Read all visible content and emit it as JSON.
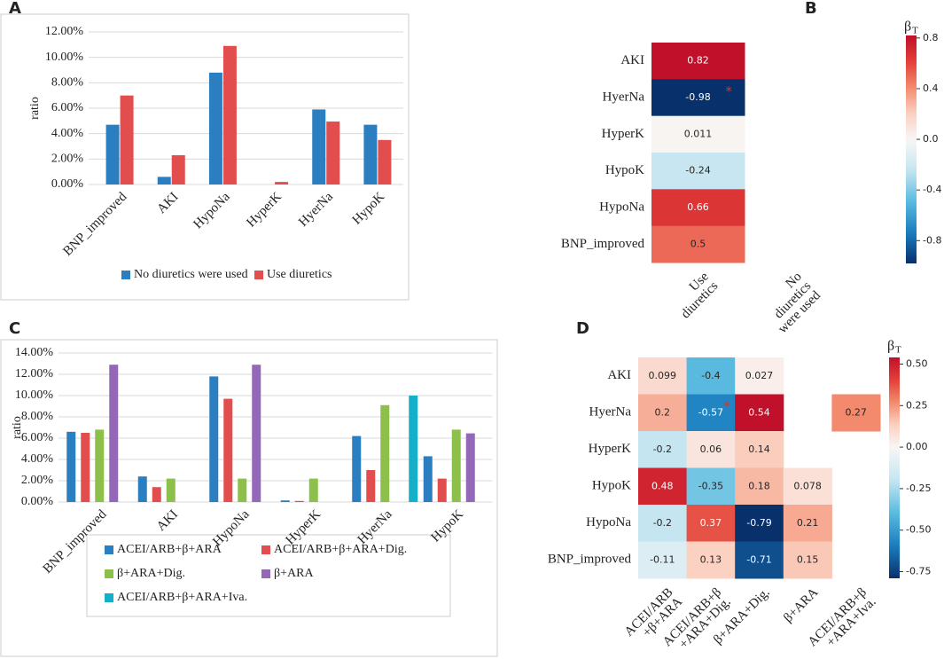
{
  "chart_data": [
    {
      "type": "bar",
      "panel": "A",
      "ylabel": "ratio",
      "categories": [
        "BNP_improved",
        "AKI",
        "HypoNa",
        "HyperK",
        "HyerNa",
        "HypoK"
      ],
      "series": [
        {
          "name": "No diuretics were used",
          "color": "#2b7fc1",
          "values": [
            4.7,
            0.6,
            8.8,
            0,
            5.9,
            4.7
          ]
        },
        {
          "name": "Use diuretics",
          "color": "#e24e4e",
          "values": [
            7.0,
            2.3,
            10.9,
            0.2,
            4.95,
            3.5
          ]
        }
      ],
      "ylim": [
        0,
        12
      ],
      "yticks": [
        {
          "value": 0,
          "label": "0.00%"
        },
        {
          "value": 2,
          "label": "2.00%"
        },
        {
          "value": 4,
          "label": "4.00%"
        },
        {
          "value": 6,
          "label": "6.00%"
        },
        {
          "value": 8,
          "label": "8.00%"
        },
        {
          "value": 10,
          "label": "10.00%"
        },
        {
          "value": 12,
          "label": "12.00%"
        }
      ],
      "grid": true,
      "legend": "bottom"
    },
    {
      "type": "heatmap",
      "panel": "B",
      "rows": [
        "AKI",
        "HyerNa",
        "HyperK",
        "HypoK",
        "HypoNa",
        "BNP_improved"
      ],
      "columns": [
        [
          "Use",
          "diuretics"
        ],
        [
          "No",
          "diuretics",
          "were used"
        ]
      ],
      "values": [
        [
          0.82,
          null
        ],
        [
          -0.98,
          null
        ],
        [
          0.011,
          null
        ],
        [
          -0.24,
          null
        ],
        [
          0.66,
          null
        ],
        [
          0.5,
          null
        ]
      ],
      "annotations": [
        {
          "text": "*",
          "row": 1,
          "col": 0,
          "color": "#d9342b"
        }
      ],
      "colorbar_label": {
        "main": "β",
        "sub": "T"
      },
      "zlim": [
        -0.98,
        0.82
      ],
      "center": 0,
      "cticks": [
        0.8,
        0.4,
        {
          "value": 0,
          "label": "0.0"
        },
        -0.4,
        -0.8
      ],
      "colormap": [
        "#08306b",
        "#1a7dbf",
        "#5bbbe0",
        "#c6e6f1",
        "#f8f6f5",
        "#fbd0c0",
        "#f38a6d",
        "#e33f3a",
        "#c0102a"
      ]
    },
    {
      "type": "bar",
      "panel": "C",
      "ylabel": "ratio",
      "categories": [
        "BNP_improved",
        "AKI",
        "HypoNa",
        "HyperK",
        "HyerNa",
        "HypoK"
      ],
      "series": [
        {
          "name": "ACEI/ARB+β+ARA",
          "color": "#2b7fc1",
          "values": [
            6.6,
            2.4,
            11.8,
            0.15,
            6.2,
            4.3
          ]
        },
        {
          "name": "ACEI/ARB+β+ARA+Dig.",
          "color": "#e24e4e",
          "values": [
            6.5,
            1.4,
            9.7,
            0.1,
            3.0,
            2.2
          ]
        },
        {
          "name": "β+ARA+Dig.",
          "color": "#8cc04b",
          "values": [
            6.8,
            2.2,
            2.2,
            2.2,
            9.1,
            6.8
          ]
        },
        {
          "name": "β+ARA",
          "color": "#9368b9",
          "values": [
            12.9,
            0,
            12.9,
            0,
            0,
            6.45
          ]
        },
        {
          "name": "ACEI/ARB+β+ARA+Iva.",
          "color": "#16afc9",
          "values": [
            0,
            0,
            0,
            0,
            10.0,
            0
          ]
        }
      ],
      "ylim": [
        0,
        14
      ],
      "yticks": [
        {
          "value": 0,
          "label": "0.00%"
        },
        {
          "value": 2,
          "label": "2.00%"
        },
        {
          "value": 4,
          "label": "4.00%"
        },
        {
          "value": 6,
          "label": "6.00%"
        },
        {
          "value": 8,
          "label": "8.00%"
        },
        {
          "value": 10,
          "label": "10.00%"
        },
        {
          "value": 12,
          "label": "12.00%"
        },
        {
          "value": 14,
          "label": "14.00%"
        }
      ],
      "grid": true,
      "legend": "bottom"
    },
    {
      "type": "heatmap",
      "panel": "D",
      "rows": [
        "AKI",
        "HyerNa",
        "HyperK",
        "HypoK",
        "HypoNa",
        "BNP_improved"
      ],
      "columns": [
        [
          "ACEI/ARB",
          "+β+ARA"
        ],
        [
          "ACEI/ARB+β",
          "+ARA+Dig."
        ],
        [
          "β+ARA+Dig."
        ],
        [
          "β+ARA"
        ],
        [
          "ACEI/ARB+β",
          "+ARA+Iva."
        ]
      ],
      "values": [
        [
          0.099,
          -0.4,
          0.027,
          null,
          null
        ],
        [
          0.2,
          -0.57,
          0.54,
          null,
          0.27
        ],
        [
          -0.2,
          0.06,
          0.14,
          null,
          null
        ],
        [
          0.48,
          -0.35,
          0.18,
          0.078,
          null
        ],
        [
          -0.2,
          0.37,
          -0.79,
          0.21,
          null
        ],
        [
          -0.11,
          0.13,
          -0.71,
          0.15,
          null
        ]
      ],
      "annotations": [
        {
          "text": "*",
          "row": 1,
          "col": 1,
          "color": "#d9342b"
        }
      ],
      "colorbar_label": {
        "main": "β",
        "sub": "T"
      },
      "zlim": [
        -0.79,
        0.54
      ],
      "center": 0,
      "cticks": [
        {
          "value": 0.5,
          "label": "0.50"
        },
        0.25,
        {
          "value": 0,
          "label": "0.00"
        },
        -0.25,
        {
          "value": -0.5,
          "label": "-0.50"
        },
        -0.75
      ],
      "colormap": [
        "#08306b",
        "#1a7dbf",
        "#5bbbe0",
        "#c6e6f1",
        "#f8f6f5",
        "#fbd0c0",
        "#f38a6d",
        "#e33f3a",
        "#c0102a"
      ]
    }
  ]
}
